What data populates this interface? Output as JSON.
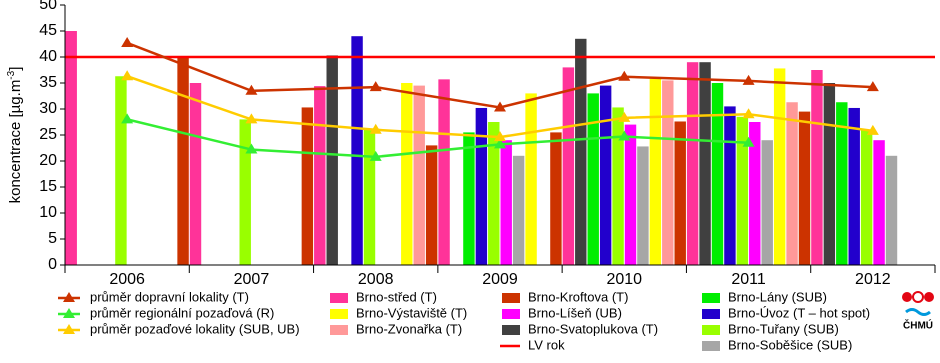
{
  "chart_data": {
    "type": "bar",
    "categories": [
      "2006",
      "2007",
      "2008",
      "2009",
      "2010",
      "2011",
      "2012"
    ],
    "ylabel": "koncentrace [µg.m",
    "ylabel_sup": "-3",
    "ylabel_end": "]",
    "ylim": [
      0,
      50
    ],
    "yticks": [
      0,
      5,
      10,
      15,
      20,
      25,
      30,
      35,
      40,
      45,
      50
    ],
    "series": [
      {
        "name": "Brno-střed (T)",
        "color": "#ff3399",
        "values": [
          45,
          35,
          34.4,
          35.7,
          38,
          39,
          37.5
        ]
      },
      {
        "name": "Brno-Svatoplukova (T)",
        "color": "#404040",
        "values": [
          null,
          null,
          40.3,
          null,
          43.5,
          39,
          35
        ]
      },
      {
        "name": "Brno-Lány (SUB)",
        "color": "#00ee00",
        "values": [
          null,
          null,
          null,
          25.5,
          33,
          35,
          31.3
        ]
      },
      {
        "name": "Brno-Úvoz (T – hot spot)",
        "color": "#2200cc",
        "values": [
          null,
          null,
          44,
          30.2,
          34.5,
          30.5,
          30.2
        ]
      },
      {
        "name": "Brno-Tuřany (SUB)",
        "color": "#99ff00",
        "values": [
          36.3,
          28,
          26,
          27.5,
          30.3,
          28.5,
          26
        ]
      },
      {
        "name": "Brno-Líšeň (UB)",
        "color": "#ff00ff",
        "values": [
          null,
          null,
          null,
          24,
          27,
          27.5,
          24
        ]
      },
      {
        "name": "Brno-Soběšice (SUB)",
        "color": "#a6a6a6",
        "values": [
          null,
          null,
          null,
          21,
          22.8,
          24,
          21
        ]
      },
      {
        "name": "Brno-Výstaviště  (T)",
        "color": "#ffff00",
        "values": [
          null,
          null,
          35,
          33,
          35.8,
          37.8,
          null
        ]
      },
      {
        "name": "Brno-Zvonařka  (T)",
        "color": "#ff9999",
        "values": [
          null,
          null,
          34.5,
          null,
          35.5,
          31.3,
          null
        ]
      },
      {
        "name": "Brno-Kroftova (T)",
        "color": "#cc3300",
        "values": [
          40,
          30.3,
          23,
          25.5,
          27.6,
          29.5,
          null
        ]
      }
    ],
    "lines": [
      {
        "name": "průměr dopravní lokality (T)",
        "color": "#cc3300",
        "marker": "triangle",
        "values": [
          42.7,
          33.5,
          34.2,
          30.3,
          36.2,
          35.4,
          34.2
        ]
      },
      {
        "name": "průměr regionální pozaďová (R)",
        "color": "#33ee33",
        "marker": "triangle",
        "values": [
          28,
          22.2,
          20.8,
          23.2,
          24.7,
          23.5,
          null
        ]
      },
      {
        "name": "průměr pozaďové lokality (SUB, UB)",
        "color": "#ffcc00",
        "marker": "triangle",
        "values": [
          36.3,
          28,
          26,
          24.6,
          28.3,
          29,
          25.8
        ]
      }
    ],
    "limit_line": {
      "name": "LV rok",
      "color": "#ff0000",
      "value": 40
    },
    "logo": "ČHMÚ"
  }
}
